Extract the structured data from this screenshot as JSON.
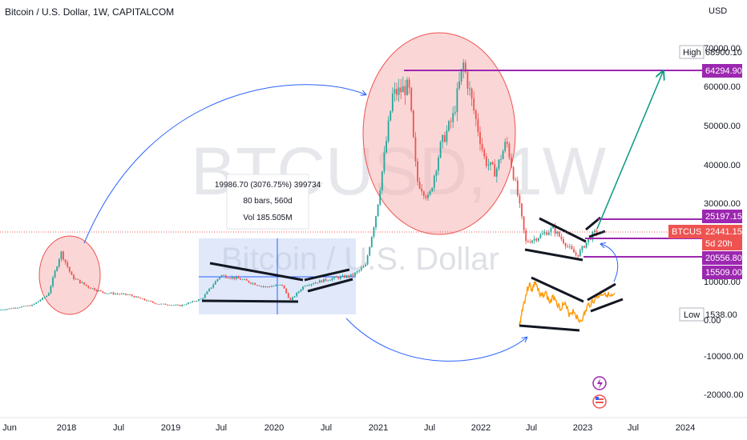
{
  "header": {
    "title": "Bitcoin / U.S. Dollar, 1W, CAPITALCOM",
    "currency": "USD"
  },
  "watermark": {
    "symbol": "BTCUSD, 1W",
    "name": "Bitcoin / U.S. Dollar"
  },
  "colors": {
    "up": "#26a69a",
    "down": "#ef5350",
    "purple": "#9c27b0",
    "arrow_blue": "#2962ff",
    "arrow_green": "#089981",
    "orange": "#ff9800",
    "circle_fill": "#f8b4b4",
    "circle_stroke": "#ef5350",
    "box_fill": "#bbccf5"
  },
  "measure": {
    "line1": "19986.70 (3076.75%) 399734",
    "line2": "80 bars, 560d",
    "line3": "Vol 185.505M"
  },
  "price_tags": {
    "high_label": "High",
    "high_value": "68900.10",
    "target": "64294.90",
    "upper": "25197.15",
    "symbol": "BTCUSD",
    "current": "22441.15",
    "countdown": "5d 20h",
    "lower": "20556.80",
    "low2": "15509.00",
    "low_label": "Low",
    "low_value": "1538.00"
  },
  "chart_data": {
    "type": "line",
    "title": "Bitcoin / U.S. Dollar, 1W, CAPITALCOM",
    "y_axis": {
      "ticks": [
        "70000.00",
        "60000.00",
        "50000.00",
        "40000.00",
        "30000.00",
        "20000.00",
        "10000.00",
        "0.00",
        "-10000.00",
        "-20000.00"
      ],
      "range": [
        -26000,
        78000
      ]
    },
    "x_axis": {
      "ticks": [
        "Jun",
        "2018",
        "Jul",
        "2019",
        "Jul",
        "2020",
        "Jul",
        "2021",
        "Jul",
        "2022",
        "Jul",
        "2023",
        "Jul",
        "2024"
      ]
    },
    "series": [
      {
        "name": "BTCUSD",
        "x": [
          "2017-06",
          "2017-10",
          "2017-12",
          "2018-02",
          "2018-06",
          "2018-11",
          "2019-02",
          "2019-06",
          "2019-09",
          "2020-03",
          "2020-07",
          "2020-12",
          "2021-04",
          "2021-07",
          "2021-11",
          "2022-01",
          "2022-04",
          "2022-06",
          "2022-09",
          "2022-11",
          "2023-01",
          "2023-02"
        ],
        "y": [
          2500,
          5500,
          17000,
          9000,
          6500,
          4000,
          3800,
          11000,
          8200,
          5000,
          9500,
          28000,
          60000,
          32000,
          66000,
          38000,
          40000,
          20000,
          19500,
          16500,
          21000,
          23000
        ]
      }
    ]
  }
}
